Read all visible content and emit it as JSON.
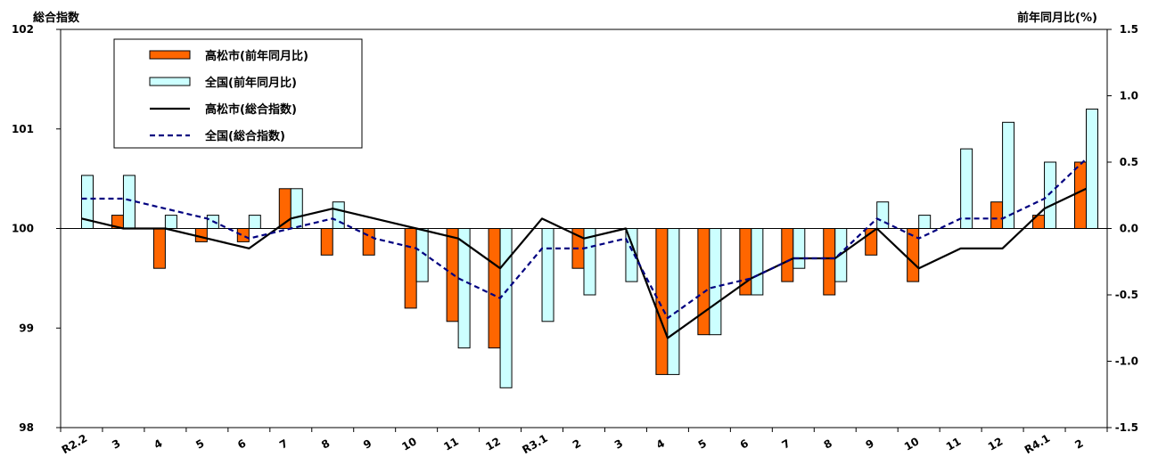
{
  "chart_data": {
    "type": "bar+line",
    "left_axis_title": "総合指数",
    "right_axis_title": "前年同月比(%)",
    "categories": [
      "R2.2",
      "3",
      "4",
      "5",
      "6",
      "7",
      "8",
      "9",
      "10",
      "11",
      "12",
      "R3.1",
      "2",
      "3",
      "4",
      "5",
      "6",
      "7",
      "8",
      "9",
      "10",
      "11",
      "12",
      "R4.1",
      "2"
    ],
    "y_left": {
      "range": [
        98,
        102
      ],
      "ticks": [
        "98",
        "99",
        "100",
        "101",
        "102"
      ]
    },
    "y_right": {
      "range": [
        -1.5,
        1.5
      ],
      "ticks": [
        "-1.5",
        "-1.0",
        "-0.5",
        "0.0",
        "0.5",
        "1.0",
        "1.5"
      ]
    },
    "bar_series": [
      {
        "name": "高松市(前年同月比)",
        "axis": "right",
        "color": "#ff6600",
        "values": [
          0.0,
          0.1,
          -0.3,
          -0.1,
          -0.1,
          0.3,
          -0.2,
          -0.2,
          -0.6,
          -0.7,
          -0.9,
          0.0,
          -0.3,
          0.0,
          -1.1,
          -0.8,
          -0.5,
          -0.4,
          -0.5,
          -0.2,
          -0.4,
          0.0,
          0.2,
          0.1,
          0.5
        ]
      },
      {
        "name": "全国(前年同月比)",
        "axis": "right",
        "color": "#ccffff",
        "values": [
          0.4,
          0.4,
          0.1,
          0.1,
          0.1,
          0.3,
          0.2,
          0.0,
          -0.4,
          -0.9,
          -1.2,
          -0.7,
          -0.5,
          -0.4,
          -1.1,
          -0.8,
          -0.5,
          -0.3,
          -0.4,
          0.2,
          0.1,
          0.6,
          0.8,
          0.5,
          0.9
        ]
      }
    ],
    "line_series": [
      {
        "name": "高松市(総合指数)",
        "axis": "left",
        "color": "#000000",
        "style": "solid",
        "values": [
          100.1,
          100.0,
          100.0,
          99.9,
          99.8,
          100.1,
          100.2,
          100.1,
          100.0,
          99.9,
          99.6,
          100.1,
          99.9,
          100.0,
          98.9,
          99.2,
          99.5,
          99.7,
          99.7,
          100.0,
          99.6,
          99.8,
          99.8,
          100.2,
          100.4
        ]
      },
      {
        "name": "全国(総合指数)",
        "axis": "left",
        "color": "#000080",
        "style": "dashed",
        "values": [
          100.3,
          100.3,
          100.2,
          100.1,
          99.9,
          100.0,
          100.1,
          99.9,
          99.8,
          99.5,
          99.3,
          99.8,
          99.8,
          99.9,
          99.1,
          99.4,
          99.5,
          99.7,
          99.7,
          100.1,
          99.9,
          100.1,
          100.1,
          100.3,
          100.7
        ]
      }
    ],
    "legend": {
      "placement": "top-left",
      "items": [
        "高松市(前年同月比)",
        "全国(前年同月比)",
        "高松市(総合指数)",
        "全国(総合指数)"
      ]
    },
    "grid": false
  }
}
